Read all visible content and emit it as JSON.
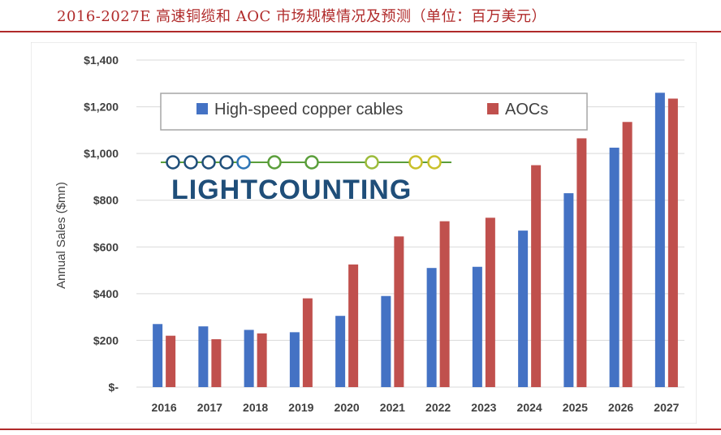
{
  "page_title": "2016-2027E 高速铜缆和 AOC 市场规模情况及预测（单位：百万美元）",
  "logo_text": "LIGHTCOUNTING",
  "colors": {
    "accent_red": "#b02a2a",
    "copper": "#4472c4",
    "aoc": "#c0504d",
    "logo_blue": "#1f4e79",
    "logo_green": "#5a9e3a",
    "logo_yellow": "#c9c02a"
  },
  "chart_data": {
    "type": "bar",
    "title": "",
    "xlabel": "",
    "ylabel": "Annual Sales ($mn)",
    "ylim": [
      0,
      1400
    ],
    "yticks": [
      0,
      200,
      400,
      600,
      800,
      1000,
      1200,
      1400
    ],
    "ytick_labels": [
      "$-",
      "$200",
      "$400",
      "$600",
      "$800",
      "$1,000",
      "$1,200",
      "$1,400"
    ],
    "grid": true,
    "legend": "top-left",
    "categories": [
      "2016",
      "2017",
      "2018",
      "2019",
      "2020",
      "2021",
      "2022",
      "2023",
      "2024",
      "2025",
      "2026",
      "2027"
    ],
    "series": [
      {
        "name": "High-speed copper cables",
        "color": "#4472c4",
        "values": [
          270,
          260,
          245,
          235,
          305,
          390,
          510,
          515,
          670,
          830,
          1025,
          1260
        ]
      },
      {
        "name": "AOCs",
        "color": "#c0504d",
        "values": [
          220,
          205,
          230,
          380,
          525,
          645,
          710,
          725,
          950,
          1065,
          1135,
          1235
        ]
      }
    ]
  }
}
